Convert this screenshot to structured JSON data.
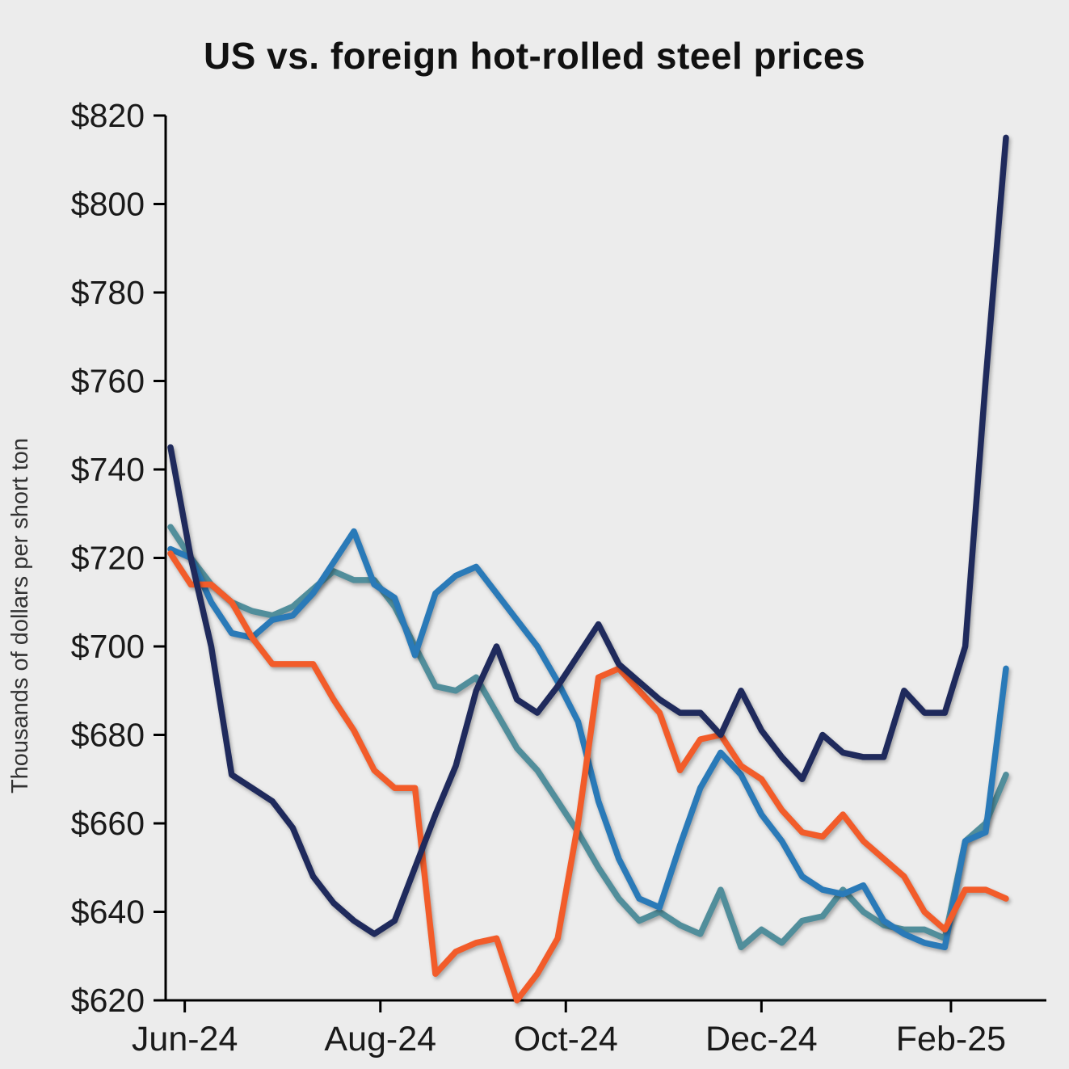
{
  "page": {
    "background": "#ececec"
  },
  "chart_data": {
    "type": "line",
    "title": "US vs. foreign hot-rolled steel prices",
    "xlabel": "",
    "ylabel": "Thousands of dollars per short ton",
    "ylim": [
      620,
      820
    ],
    "grid": false,
    "legend_position": "none",
    "n_points": 42,
    "yticks": [
      {
        "value": 620,
        "label": "$620"
      },
      {
        "value": 640,
        "label": "$640"
      },
      {
        "value": 660,
        "label": "$660"
      },
      {
        "value": 680,
        "label": "$680"
      },
      {
        "value": 700,
        "label": "$700"
      },
      {
        "value": 720,
        "label": "$720"
      },
      {
        "value": 740,
        "label": "$740"
      },
      {
        "value": 760,
        "label": "$760"
      },
      {
        "value": 780,
        "label": "$780"
      },
      {
        "value": 800,
        "label": "$800"
      },
      {
        "value": 820,
        "label": "$820"
      }
    ],
    "xticks": [
      {
        "pos": 0.7,
        "label": "Jun-24"
      },
      {
        "pos": 10.3,
        "label": "Aug-24"
      },
      {
        "pos": 19.4,
        "label": "Oct-24"
      },
      {
        "pos": 29.0,
        "label": "Dec-24"
      },
      {
        "pos": 38.3,
        "label": "Feb-25"
      }
    ],
    "series": [
      {
        "id": "teal",
        "color": "#518e9b",
        "values": [
          727,
          720,
          714,
          710,
          708,
          707,
          709,
          713,
          717,
          715,
          715,
          709,
          700,
          691,
          690,
          693,
          685,
          677,
          672,
          665,
          658,
          650,
          643,
          638,
          640,
          637,
          635,
          645,
          632,
          636,
          633,
          638,
          639,
          645,
          640,
          637,
          636,
          636,
          634,
          656,
          660,
          671
        ]
      },
      {
        "id": "blue",
        "color": "#2a7ab8",
        "values": [
          722,
          720,
          710,
          703,
          702,
          706,
          707,
          712,
          719,
          726,
          714,
          711,
          698,
          712,
          716,
          718,
          712,
          706,
          700,
          692,
          683,
          665,
          652,
          643,
          641,
          655,
          668,
          676,
          671,
          662,
          656,
          648,
          645,
          644,
          646,
          638,
          635,
          633,
          632,
          656,
          658,
          695
        ]
      },
      {
        "id": "orange",
        "color": "#f25c2a",
        "values": [
          721,
          714,
          714,
          710,
          702,
          696,
          696,
          696,
          688,
          681,
          672,
          668,
          668,
          626,
          631,
          633,
          634,
          620,
          626,
          634,
          660,
          693,
          695,
          690,
          685,
          672,
          679,
          680,
          673,
          670,
          663,
          658,
          657,
          662,
          656,
          652,
          648,
          640,
          636,
          645,
          645,
          643
        ]
      },
      {
        "id": "navy",
        "color": "#1f2a5c",
        "values": [
          745,
          720,
          700,
          671,
          668,
          665,
          659,
          648,
          642,
          638,
          635,
          638,
          650,
          662,
          673,
          690,
          700,
          688,
          685,
          691,
          698,
          705,
          696,
          692,
          688,
          685,
          685,
          680,
          690,
          681,
          675,
          670,
          680,
          676,
          675,
          675,
          690,
          685,
          685,
          700,
          760,
          815
        ]
      }
    ]
  }
}
